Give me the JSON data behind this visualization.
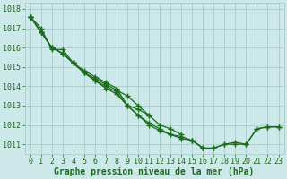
{
  "background_color": "#cce8e8",
  "grid_color": "#aacccc",
  "line_color": "#1a6b1a",
  "xlabel": "Graphe pression niveau de la mer (hPa)",
  "xlabel_fontsize": 7,
  "tick_fontsize": 6,
  "xlim": [
    -0.5,
    23.5
  ],
  "ylim": [
    1010.5,
    1018.3
  ],
  "yticks": [
    1011,
    1012,
    1013,
    1014,
    1015,
    1016,
    1017,
    1018
  ],
  "xticks": [
    0,
    1,
    2,
    3,
    4,
    5,
    6,
    7,
    8,
    9,
    10,
    11,
    12,
    13,
    14,
    15,
    16,
    17,
    18,
    19,
    20,
    21,
    22,
    23
  ],
  "series": [
    [
      1017.6,
      1017.0,
      1015.9,
      1015.9,
      1015.2,
      1014.8,
      1014.5,
      1014.2,
      1013.9,
      1013.0,
      1012.8,
      1012.5,
      null,
      null,
      null,
      1011.2,
      1010.8,
      null,
      null,
      null,
      null,
      null,
      null,
      null
    ],
    [
      1017.6,
      1016.8,
      1016.0,
      1015.7,
      1015.2,
      1014.7,
      1014.4,
      1014.1,
      1013.8,
      1013.5,
      1013.0,
      1012.5,
      1012.0,
      1011.8,
      1011.5,
      null,
      null,
      null,
      null,
      null,
      null,
      null,
      null,
      null
    ],
    [
      1017.6,
      1016.8,
      1016.0,
      1015.7,
      1015.2,
      1014.7,
      1014.3,
      1014.0,
      1013.7,
      1013.0,
      1012.5,
      1012.0,
      1011.7,
      1011.5,
      1011.4,
      1011.2,
      1010.8,
      1010.8,
      1011.0,
      1011.0,
      1011.0,
      1011.8,
      1011.9,
      1011.9
    ],
    [
      1017.6,
      1016.8,
      1016.0,
      1015.7,
      1015.2,
      1014.7,
      1014.3,
      1013.9,
      1013.6,
      1013.0,
      1012.5,
      1012.1,
      1011.8,
      1011.5,
      1011.3,
      1011.2,
      1010.8,
      1010.8,
      1011.0,
      1011.1,
      1011.0,
      1011.8,
      1011.9,
      1011.9
    ]
  ]
}
